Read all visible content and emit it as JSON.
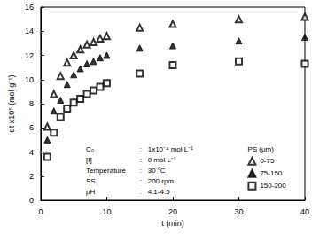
{
  "chart_data": {
    "type": "scatter",
    "x_label": "t (min)",
    "y_label": "qt x10⁵ (mol g⁻¹)",
    "xlim": [
      0,
      40
    ],
    "xticks": [
      0,
      10,
      20,
      30,
      40
    ],
    "ylim": [
      0,
      16
    ],
    "yticks": [
      0,
      2,
      4,
      6,
      8,
      10,
      12,
      14,
      16
    ],
    "grid": false,
    "legend": "lower right",
    "legend_title": "PS (μm)",
    "annotations": [
      {
        "label": "C₀",
        "value": ":   1x10⁻⁴ mol L⁻¹"
      },
      {
        "label": "[I]",
        "value": ":   0 mol L⁻¹"
      },
      {
        "label": "Temperature",
        "value": ":   30 ⁰C"
      },
      {
        "label": "SS",
        "value": ":   200 rpm"
      },
      {
        "label": "pH",
        "value": ":   4.1-4.5"
      }
    ],
    "series": [
      {
        "name": "0-75",
        "color": "#000000",
        "marker": "open_triangle",
        "x": [
          1,
          2,
          3,
          4,
          5,
          6,
          7,
          8,
          9,
          10,
          15,
          20,
          30,
          40
        ],
        "values": [
          6.1,
          8.8,
          10.3,
          11.4,
          12.0,
          12.5,
          12.9,
          13.1,
          13.4,
          13.6,
          14.3,
          14.6,
          15.0,
          15.2
        ]
      },
      {
        "name": "75-150",
        "color": "#000000",
        "marker": "filled_triangle",
        "x": [
          1,
          2,
          3,
          4,
          5,
          6,
          7,
          8,
          9,
          10,
          15,
          20,
          30,
          40
        ],
        "values": [
          5.0,
          7.4,
          8.3,
          9.6,
          10.4,
          10.9,
          11.3,
          11.5,
          11.8,
          12.0,
          12.6,
          12.8,
          13.2,
          13.5
        ]
      },
      {
        "name": "150-200",
        "color": "#000000",
        "marker": "open_square",
        "x": [
          1,
          2,
          3,
          4,
          5,
          6,
          7,
          8,
          9,
          10,
          15,
          20,
          30,
          40
        ],
        "values": [
          3.6,
          5.6,
          6.9,
          7.6,
          8.1,
          8.4,
          8.8,
          9.1,
          9.4,
          9.7,
          10.5,
          11.2,
          11.5,
          11.3
        ]
      }
    ]
  }
}
